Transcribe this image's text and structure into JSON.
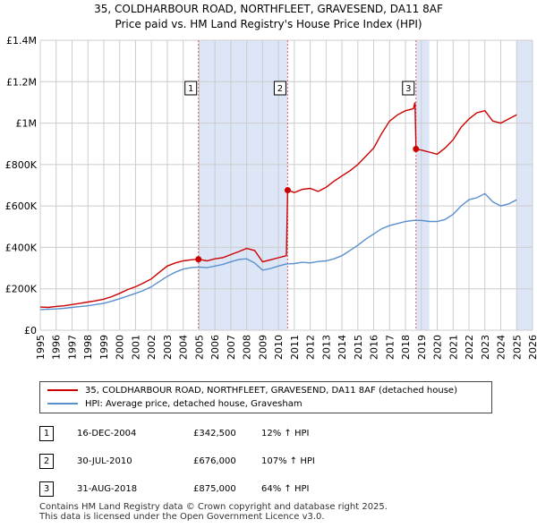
{
  "title_line1": "35, COLDHARBOUR ROAD, NORTHFLEET, GRAVESEND, DA11 8AF",
  "title_line2": "Price paid vs. HM Land Registry's House Price Index (HPI)",
  "colors": {
    "property": "#cc0000",
    "hpi": "#5a8fcf",
    "band": "#dde6f7",
    "grid": "#cccccc",
    "vline": "#e06060"
  },
  "legend": {
    "property_label": "35, COLDHARBOUR ROAD, NORTHFLEET, GRAVESEND, DA11 8AF (detached house)",
    "hpi_label": "HPI: Average price, detached house, Gravesham"
  },
  "sales": [
    {
      "num": "1",
      "date": "16-DEC-2004",
      "price": "£342,500",
      "hpi": "12% ↑ HPI"
    },
    {
      "num": "2",
      "date": "30-JUL-2010",
      "price": "£676,000",
      "hpi": "107% ↑ HPI"
    },
    {
      "num": "3",
      "date": "31-AUG-2018",
      "price": "£875,000",
      "hpi": "64% ↑ HPI"
    }
  ],
  "footer_line1": "Contains HM Land Registry data © Crown copyright and database right 2025.",
  "footer_line2": "This data is licensed under the Open Government Licence v3.0.",
  "chart_data": {
    "type": "line",
    "xlim": [
      1995,
      2026
    ],
    "ylim": [
      0,
      1400000
    ],
    "yticks": [
      0,
      200000,
      400000,
      600000,
      800000,
      1000000,
      1200000,
      1400000
    ],
    "ytick_labels": [
      "£0",
      "£200K",
      "£400K",
      "£600K",
      "£800K",
      "£1M",
      "£1.2M",
      "£1.4M"
    ],
    "xticks": [
      1995,
      1996,
      1997,
      1998,
      1999,
      2000,
      2001,
      2002,
      2003,
      2004,
      2005,
      2006,
      2007,
      2008,
      2009,
      2010,
      2011,
      2012,
      2013,
      2014,
      2015,
      2016,
      2017,
      2018,
      2019,
      2020,
      2021,
      2022,
      2023,
      2024,
      2025,
      2026
    ],
    "xtick_labels": [
      "1995",
      "1996",
      "1997",
      "1998",
      "1999",
      "2000",
      "2001",
      "2002",
      "2003",
      "2004",
      "2005",
      "2006",
      "2007",
      "2008",
      "2009",
      "2010",
      "2011",
      "2012",
      "2013",
      "2014",
      "2015",
      "2016",
      "2017",
      "2018",
      "2019",
      "2020",
      "2021",
      "2022",
      "2023",
      "2024",
      "2025",
      "2026"
    ],
    "shaded_ranges": [
      [
        2004.96,
        2010.58
      ],
      [
        2018.66,
        2019.5
      ],
      [
        2025.0,
        2026
      ]
    ],
    "sale_markers": [
      {
        "label": "1",
        "x": 2004.96,
        "y": 342500
      },
      {
        "label": "2",
        "x": 2010.58,
        "y": 676000
      },
      {
        "label": "3",
        "x": 2018.66,
        "y": 875000
      }
    ],
    "series": [
      {
        "name": "35, COLDHARBOUR ROAD, NORTHFLEET, GRAVESEND, DA11 8AF (detached house)",
        "x": [
          1995.0,
          1995.5,
          1996.0,
          1996.5,
          1997.0,
          1997.5,
          1998.0,
          1998.5,
          1999.0,
          1999.5,
          2000.0,
          2000.5,
          2001.0,
          2001.5,
          2002.0,
          2002.5,
          2003.0,
          2003.5,
          2004.0,
          2004.5,
          2004.96,
          2005.5,
          2006.0,
          2006.5,
          2007.0,
          2007.5,
          2008.0,
          2008.5,
          2009.0,
          2009.5,
          2010.0,
          2010.5,
          2010.58,
          2011.0,
          2011.5,
          2012.0,
          2012.5,
          2013.0,
          2013.5,
          2014.0,
          2014.5,
          2015.0,
          2015.5,
          2016.0,
          2016.5,
          2017.0,
          2017.5,
          2018.0,
          2018.5,
          2018.6,
          2018.66,
          2019.0,
          2019.5,
          2020.0,
          2020.5,
          2021.0,
          2021.5,
          2022.0,
          2022.5,
          2023.0,
          2023.5,
          2024.0,
          2024.5,
          2025.0
        ],
        "y": [
          112000,
          110000,
          115000,
          118000,
          124000,
          130000,
          136000,
          142000,
          150000,
          162000,
          178000,
          196000,
          210000,
          228000,
          248000,
          280000,
          310000,
          325000,
          335000,
          340000,
          342500,
          335000,
          345000,
          350000,
          365000,
          380000,
          395000,
          385000,
          330000,
          340000,
          350000,
          360000,
          676000,
          665000,
          680000,
          685000,
          670000,
          690000,
          720000,
          745000,
          770000,
          800000,
          840000,
          880000,
          950000,
          1010000,
          1040000,
          1060000,
          1070000,
          1100000,
          875000,
          870000,
          860000,
          850000,
          880000,
          920000,
          980000,
          1020000,
          1050000,
          1060000,
          1010000,
          1000000,
          1020000,
          1040000
        ]
      },
      {
        "name": "HPI: Average price, detached house, Gravesham",
        "x": [
          1995.0,
          1995.5,
          1996.0,
          1996.5,
          1997.0,
          1997.5,
          1998.0,
          1998.5,
          1999.0,
          1999.5,
          2000.0,
          2000.5,
          2001.0,
          2001.5,
          2002.0,
          2002.5,
          2003.0,
          2003.5,
          2004.0,
          2004.5,
          2005.0,
          2005.5,
          2006.0,
          2006.5,
          2007.0,
          2007.5,
          2008.0,
          2008.5,
          2009.0,
          2009.5,
          2010.0,
          2010.5,
          2011.0,
          2011.5,
          2012.0,
          2012.5,
          2013.0,
          2013.5,
          2014.0,
          2014.5,
          2015.0,
          2015.5,
          2016.0,
          2016.5,
          2017.0,
          2017.5,
          2018.0,
          2018.5,
          2019.0,
          2019.5,
          2020.0,
          2020.5,
          2021.0,
          2021.5,
          2022.0,
          2022.5,
          2023.0,
          2023.5,
          2024.0,
          2024.5,
          2025.0
        ],
        "y": [
          100000,
          101000,
          103000,
          106000,
          110000,
          114000,
          118000,
          124000,
          130000,
          140000,
          152000,
          165000,
          178000,
          192000,
          210000,
          235000,
          260000,
          280000,
          295000,
          302000,
          305000,
          302000,
          310000,
          318000,
          330000,
          342000,
          345000,
          325000,
          290000,
          298000,
          310000,
          320000,
          322000,
          328000,
          325000,
          332000,
          335000,
          345000,
          360000,
          385000,
          410000,
          440000,
          465000,
          490000,
          505000,
          515000,
          525000,
          530000,
          530000,
          525000,
          525000,
          535000,
          560000,
          600000,
          630000,
          640000,
          660000,
          620000,
          600000,
          610000,
          630000
        ]
      }
    ]
  }
}
